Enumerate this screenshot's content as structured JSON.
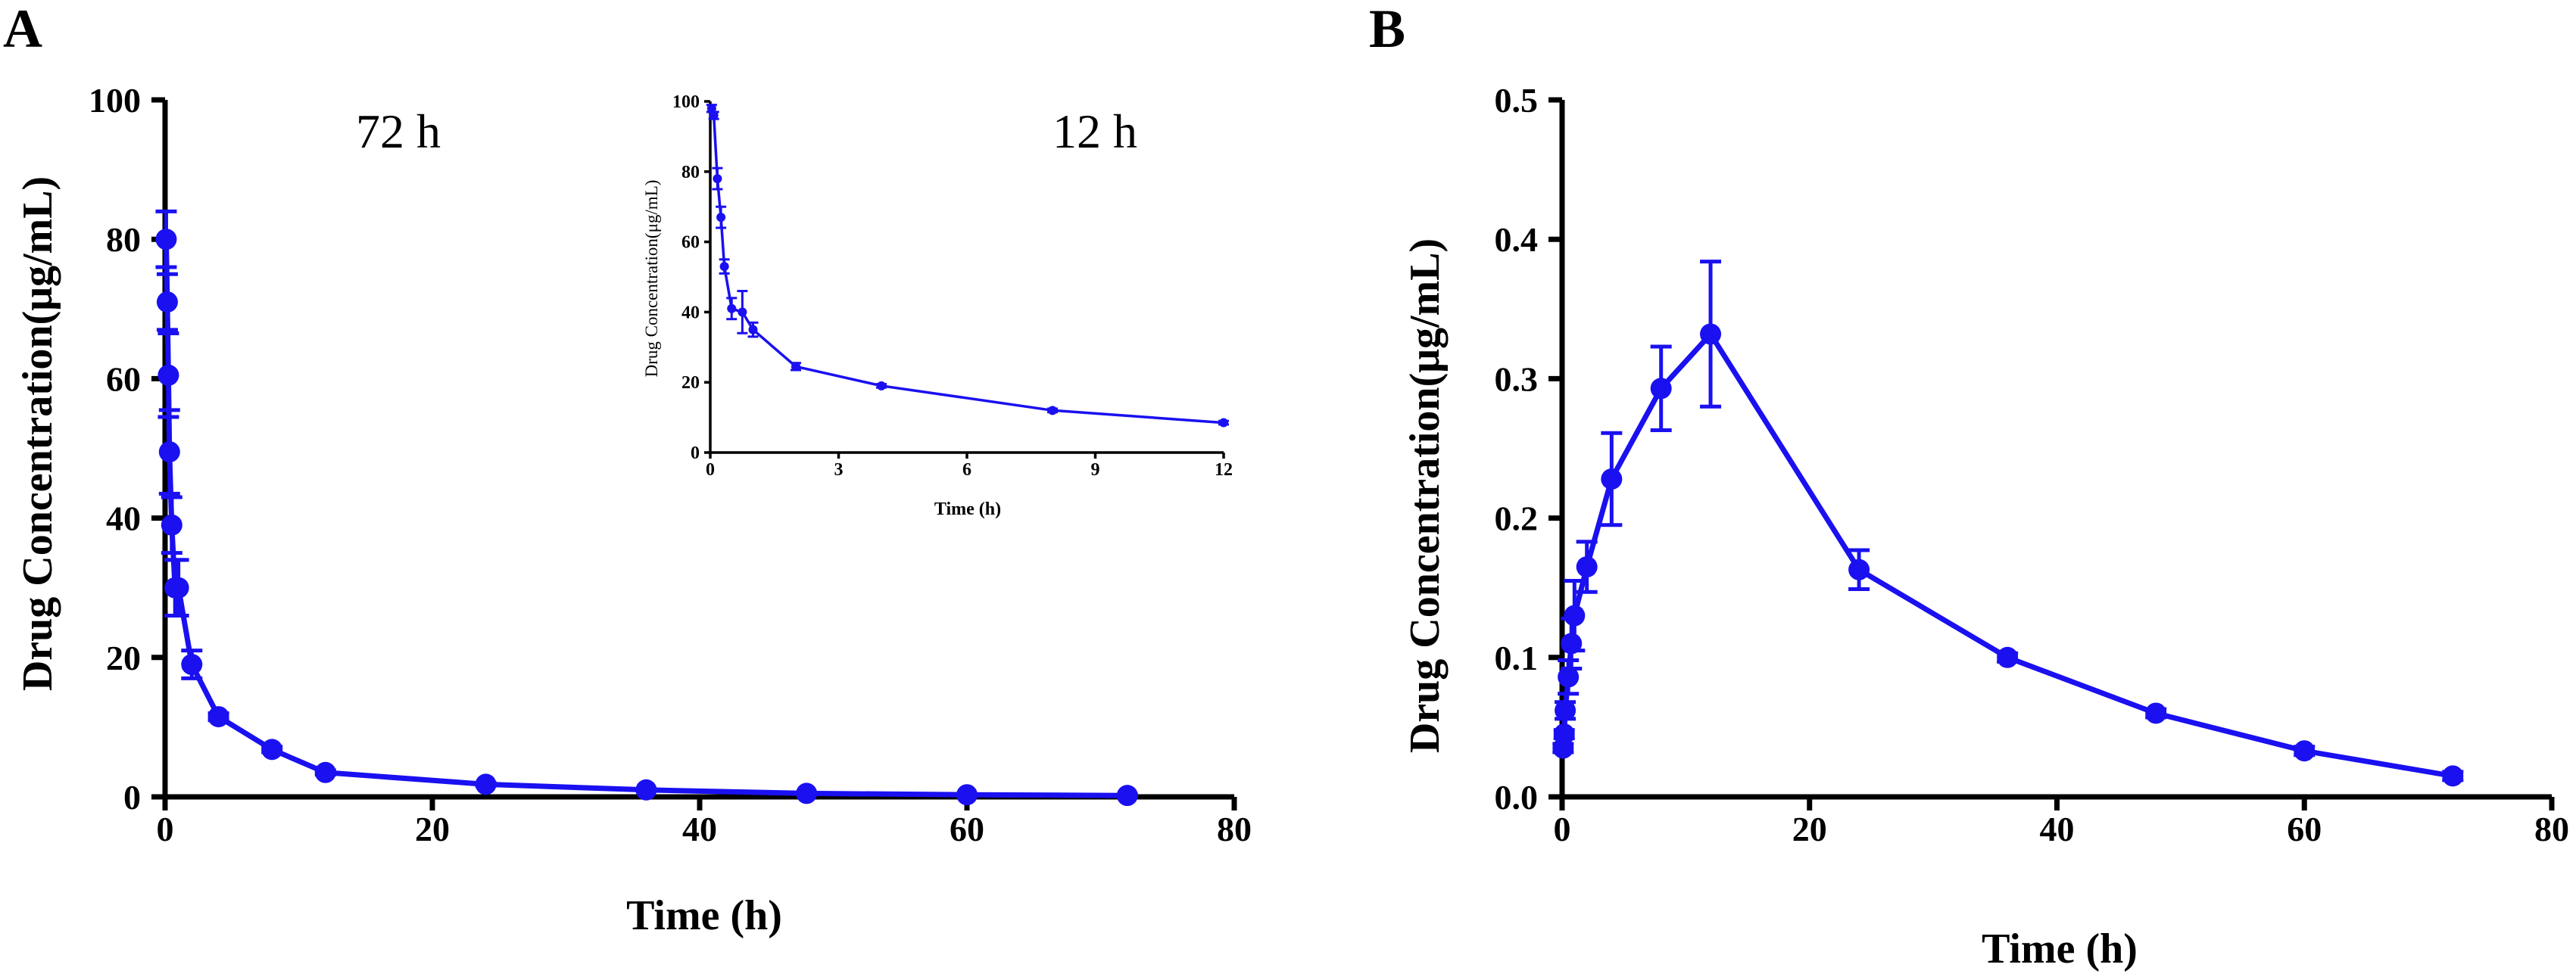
{
  "colors": {
    "series": "#1a10f0",
    "axis": "#000000"
  },
  "chart_data": [
    {
      "panel": "A",
      "type": "line",
      "annotation": "72 h",
      "xlabel": "Time (h)",
      "ylabel": "Drug Concentration(μg/mL)",
      "xlim": [
        0,
        80
      ],
      "ylim": [
        0,
        100
      ],
      "xticks": [
        "0",
        "20",
        "40",
        "60",
        "80"
      ],
      "yticks": [
        "0",
        "20",
        "40",
        "60",
        "80",
        "100"
      ],
      "series": [
        {
          "name": "Drug concentration",
          "x": [
            0.083,
            0.167,
            0.25,
            0.33,
            0.5,
            0.75,
            1,
            2,
            4,
            8,
            12,
            24,
            36,
            48,
            60,
            72
          ],
          "y": [
            80,
            71,
            60.5,
            49.5,
            39,
            30,
            30,
            19,
            11.5,
            6.8,
            3.5,
            1.8,
            1,
            0.5,
            0.3,
            0.2
          ],
          "error": [
            4,
            4,
            6,
            6,
            4,
            4,
            4,
            2,
            0.5,
            0.4,
            0.3,
            0.2,
            0.1,
            0.1,
            0.1,
            0.1
          ]
        }
      ],
      "inset": {
        "type": "line",
        "annotation": "12 h",
        "xlabel": "Time (h)",
        "ylabel": "Drug Concentration(μg/mL)",
        "xlim": [
          0,
          12
        ],
        "ylim": [
          0,
          100
        ],
        "xticks": [
          "0",
          "3",
          "6",
          "9",
          "12"
        ],
        "yticks": [
          "0",
          "20",
          "40",
          "60",
          "80",
          "100"
        ],
        "x": [
          0.033,
          0.083,
          0.167,
          0.25,
          0.33,
          0.5,
          0.75,
          1,
          2,
          4,
          8,
          12
        ],
        "y": [
          98,
          96,
          78,
          67,
          53,
          41,
          40,
          35,
          24.5,
          19,
          12,
          8.5
        ],
        "error": [
          1,
          1,
          3,
          3,
          2,
          3,
          6,
          2,
          1,
          0.5,
          0.5,
          0.5
        ]
      }
    },
    {
      "panel": "B",
      "type": "line",
      "xlabel": "Time (h)",
      "ylabel": "Drug Concentration(μg/mL)",
      "xlim": [
        0,
        80
      ],
      "ylim": [
        0,
        0.5
      ],
      "xticks": [
        "0",
        "20",
        "40",
        "60",
        "80"
      ],
      "yticks": [
        "0.0",
        "0.1",
        "0.2",
        "0.3",
        "0.4",
        "0.5"
      ],
      "series": [
        {
          "name": "Drug concentration",
          "x": [
            0.083,
            0.167,
            0.25,
            0.5,
            0.75,
            1,
            2,
            4,
            8,
            12,
            24,
            36,
            48,
            60,
            72
          ],
          "y": [
            0.035,
            0.045,
            0.062,
            0.086,
            0.11,
            0.13,
            0.165,
            0.228,
            0.293,
            0.332,
            0.163,
            0.1,
            0.06,
            0.033,
            0.015
          ],
          "error": [
            0.003,
            0.003,
            0.006,
            0.012,
            0.018,
            0.025,
            0.018,
            0.033,
            0.03,
            0.052,
            0.014,
            0.003,
            0.003,
            0.003,
            0.003
          ]
        }
      ]
    }
  ]
}
